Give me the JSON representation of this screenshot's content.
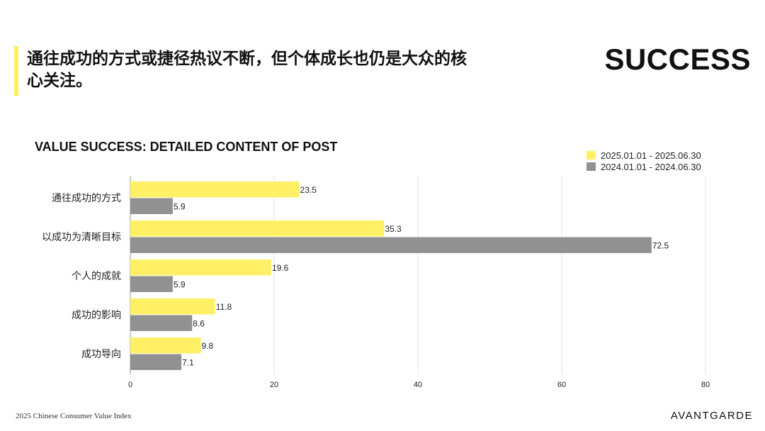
{
  "header": {
    "headline": "通往成功的方式或捷径热议不断，但个体成长也仍是大众的核心关注。",
    "section_title": "SUCCESS"
  },
  "footer": {
    "source": "2025 Chinese Consumer Value Index",
    "brand": "AVANTGARDE"
  },
  "colors": {
    "accent": "#ffef5c",
    "series_2025": "#fff065",
    "series_2024": "#919191",
    "grid": "#e3e3e3"
  },
  "chart_data": {
    "type": "bar",
    "orientation": "horizontal",
    "title": "VALUE SUCCESS: DETAILED CONTENT OF POST",
    "categories": [
      "通往成功的方式",
      "以成功为清晰目标",
      "个人的成就",
      "成功的影响",
      "成功导向"
    ],
    "series": [
      {
        "name": "2025.01.01 - 2025.06.30",
        "values": [
          23.5,
          35.3,
          19.6,
          11.8,
          9.8
        ]
      },
      {
        "name": "2024.01.01 - 2024.06.30",
        "values": [
          5.9,
          72.5,
          5.9,
          8.6,
          7.1
        ]
      }
    ],
    "xlim": [
      0,
      80
    ],
    "xticks": [
      0,
      20,
      40,
      60,
      80
    ],
    "grid": true,
    "legend_position": "top-right",
    "data_labels": true
  }
}
